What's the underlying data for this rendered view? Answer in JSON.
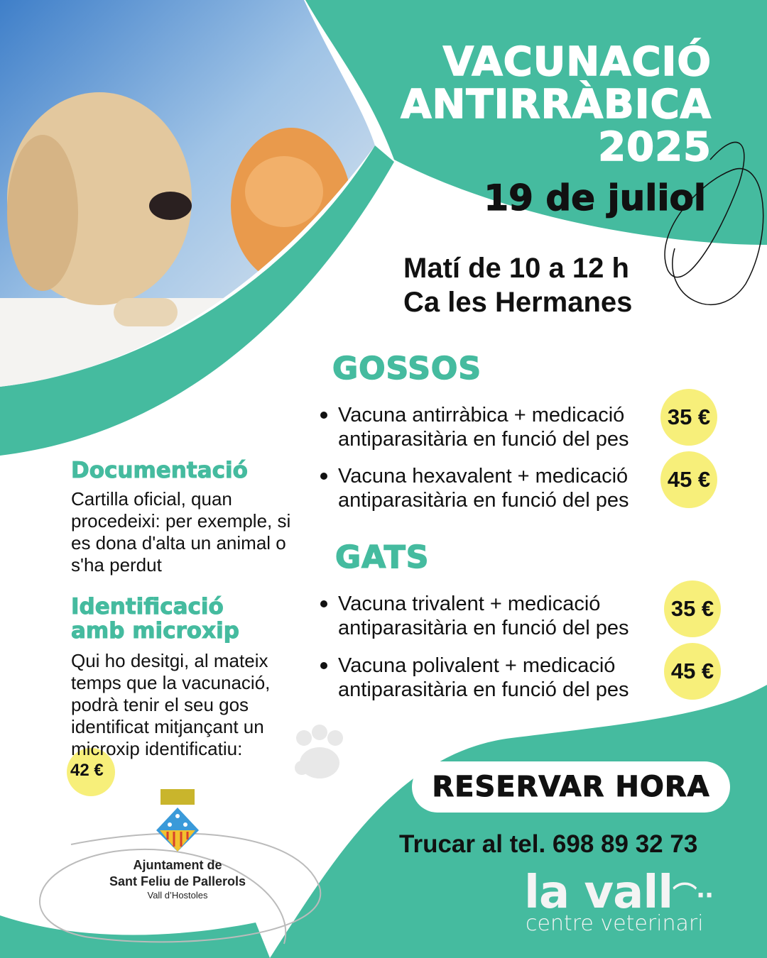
{
  "colors": {
    "teal": "#45bb9f",
    "yellow": "#f7ef7a",
    "text": "#111111"
  },
  "header": {
    "title_lines": [
      "VACUNACIÓ",
      "ANTIRRÀBICA",
      "2025"
    ],
    "date": "19 de juliol"
  },
  "schedule": {
    "time": "Matí de 10 a 12 h",
    "place": "Ca les Hermanes"
  },
  "dogs": {
    "heading": "GOSSOS",
    "items": [
      {
        "line1": "Vacuna antirràbica + medicació",
        "line2": "antiparasitària en funció del pes",
        "price": "35 €"
      },
      {
        "line1": "Vacuna hexavalent + medicació",
        "line2": "antiparasitària en funció del pes",
        "price": "45 €"
      }
    ]
  },
  "cats": {
    "heading": "GATS",
    "items": [
      {
        "line1": "Vacuna trivalent + medicació",
        "line2": "antiparasitària en funció del pes",
        "price": "35 €"
      },
      {
        "line1": "Vacuna polivalent + medicació",
        "line2": "antiparasitària en funció del pes",
        "price": "45 €"
      }
    ]
  },
  "documentation": {
    "heading": "Documentació",
    "text": "Cartilla oficial, quan procedeixi: per exemple, si es dona d'alta un animal o s'ha perdut"
  },
  "microchip": {
    "heading_lines": [
      "Identificació",
      "amb microxip"
    ],
    "text": "Qui ho desitgi, al mateix temps que la vacunació, podrà tenir el seu gos identificat mitjançant un microxip identificatiu:",
    "price": "42 €"
  },
  "cta": {
    "reserve_label": "RESERVAR HORA",
    "phone": "Trucar al tel. 698 89 32 73"
  },
  "sponsor": {
    "line1": "Ajuntament de",
    "line2": "Sant Feliu de Pallerols",
    "line3": "Vall d’Hostoles"
  },
  "brand": {
    "name": "la vall",
    "tagline": "centre veterinari"
  },
  "icons": [
    "paw-icon",
    "coat-of-arms-icon",
    "cat-face-icon"
  ]
}
